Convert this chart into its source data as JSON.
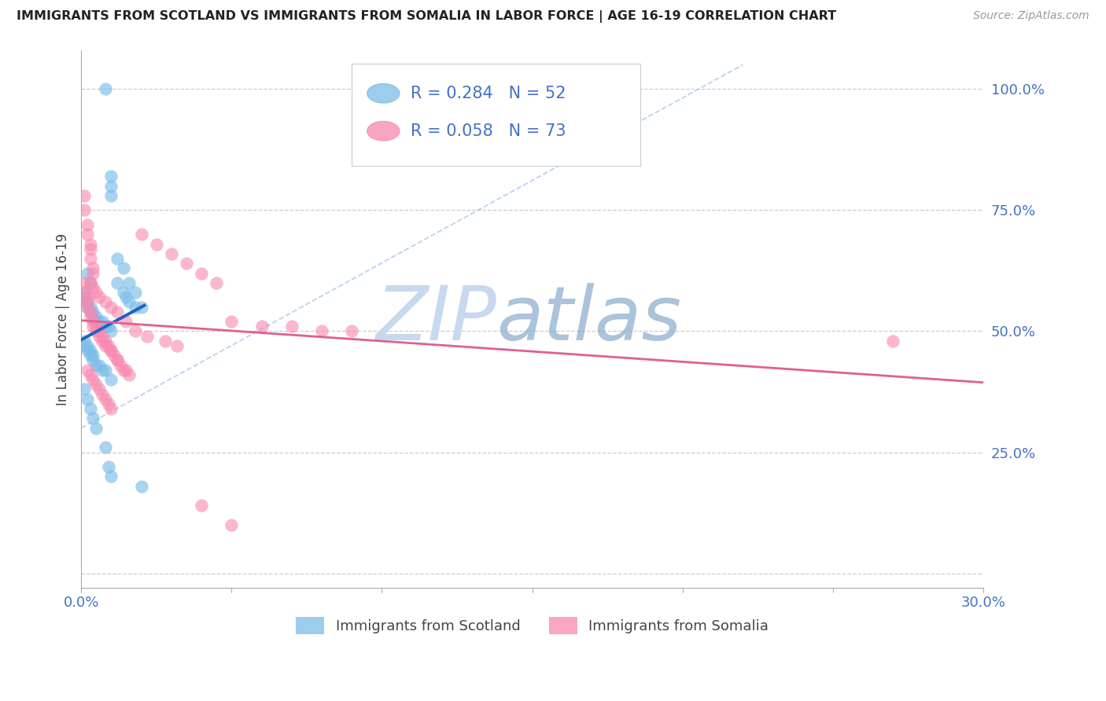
{
  "title": "IMMIGRANTS FROM SCOTLAND VS IMMIGRANTS FROM SOMALIA IN LABOR FORCE | AGE 16-19 CORRELATION CHART",
  "source": "Source: ZipAtlas.com",
  "ylabel": "In Labor Force | Age 16-19",
  "xlim": [
    0.0,
    0.3
  ],
  "ylim": [
    -0.03,
    1.08
  ],
  "yticks": [
    0.0,
    0.25,
    0.5,
    0.75,
    1.0
  ],
  "ytick_labels": [
    "",
    "25.0%",
    "50.0%",
    "75.0%",
    "100.0%"
  ],
  "legend_scotland": "Immigrants from Scotland",
  "legend_somalia": "Immigrants from Somalia",
  "R_scotland": 0.284,
  "N_scotland": 52,
  "R_somalia": 0.058,
  "N_somalia": 73,
  "color_scotland": "#7bbde8",
  "color_somalia": "#f888b0",
  "color_trendline_scotland": "#2060c0",
  "color_trendline_somalia": "#e06090",
  "axis_label_color": "#4472c4",
  "grid_color": "#cccccc",
  "title_color": "#222222",
  "source_color": "#999999",
  "watermark_zip_color": "#c8d8ee",
  "watermark_atlas_color": "#88aacc"
}
